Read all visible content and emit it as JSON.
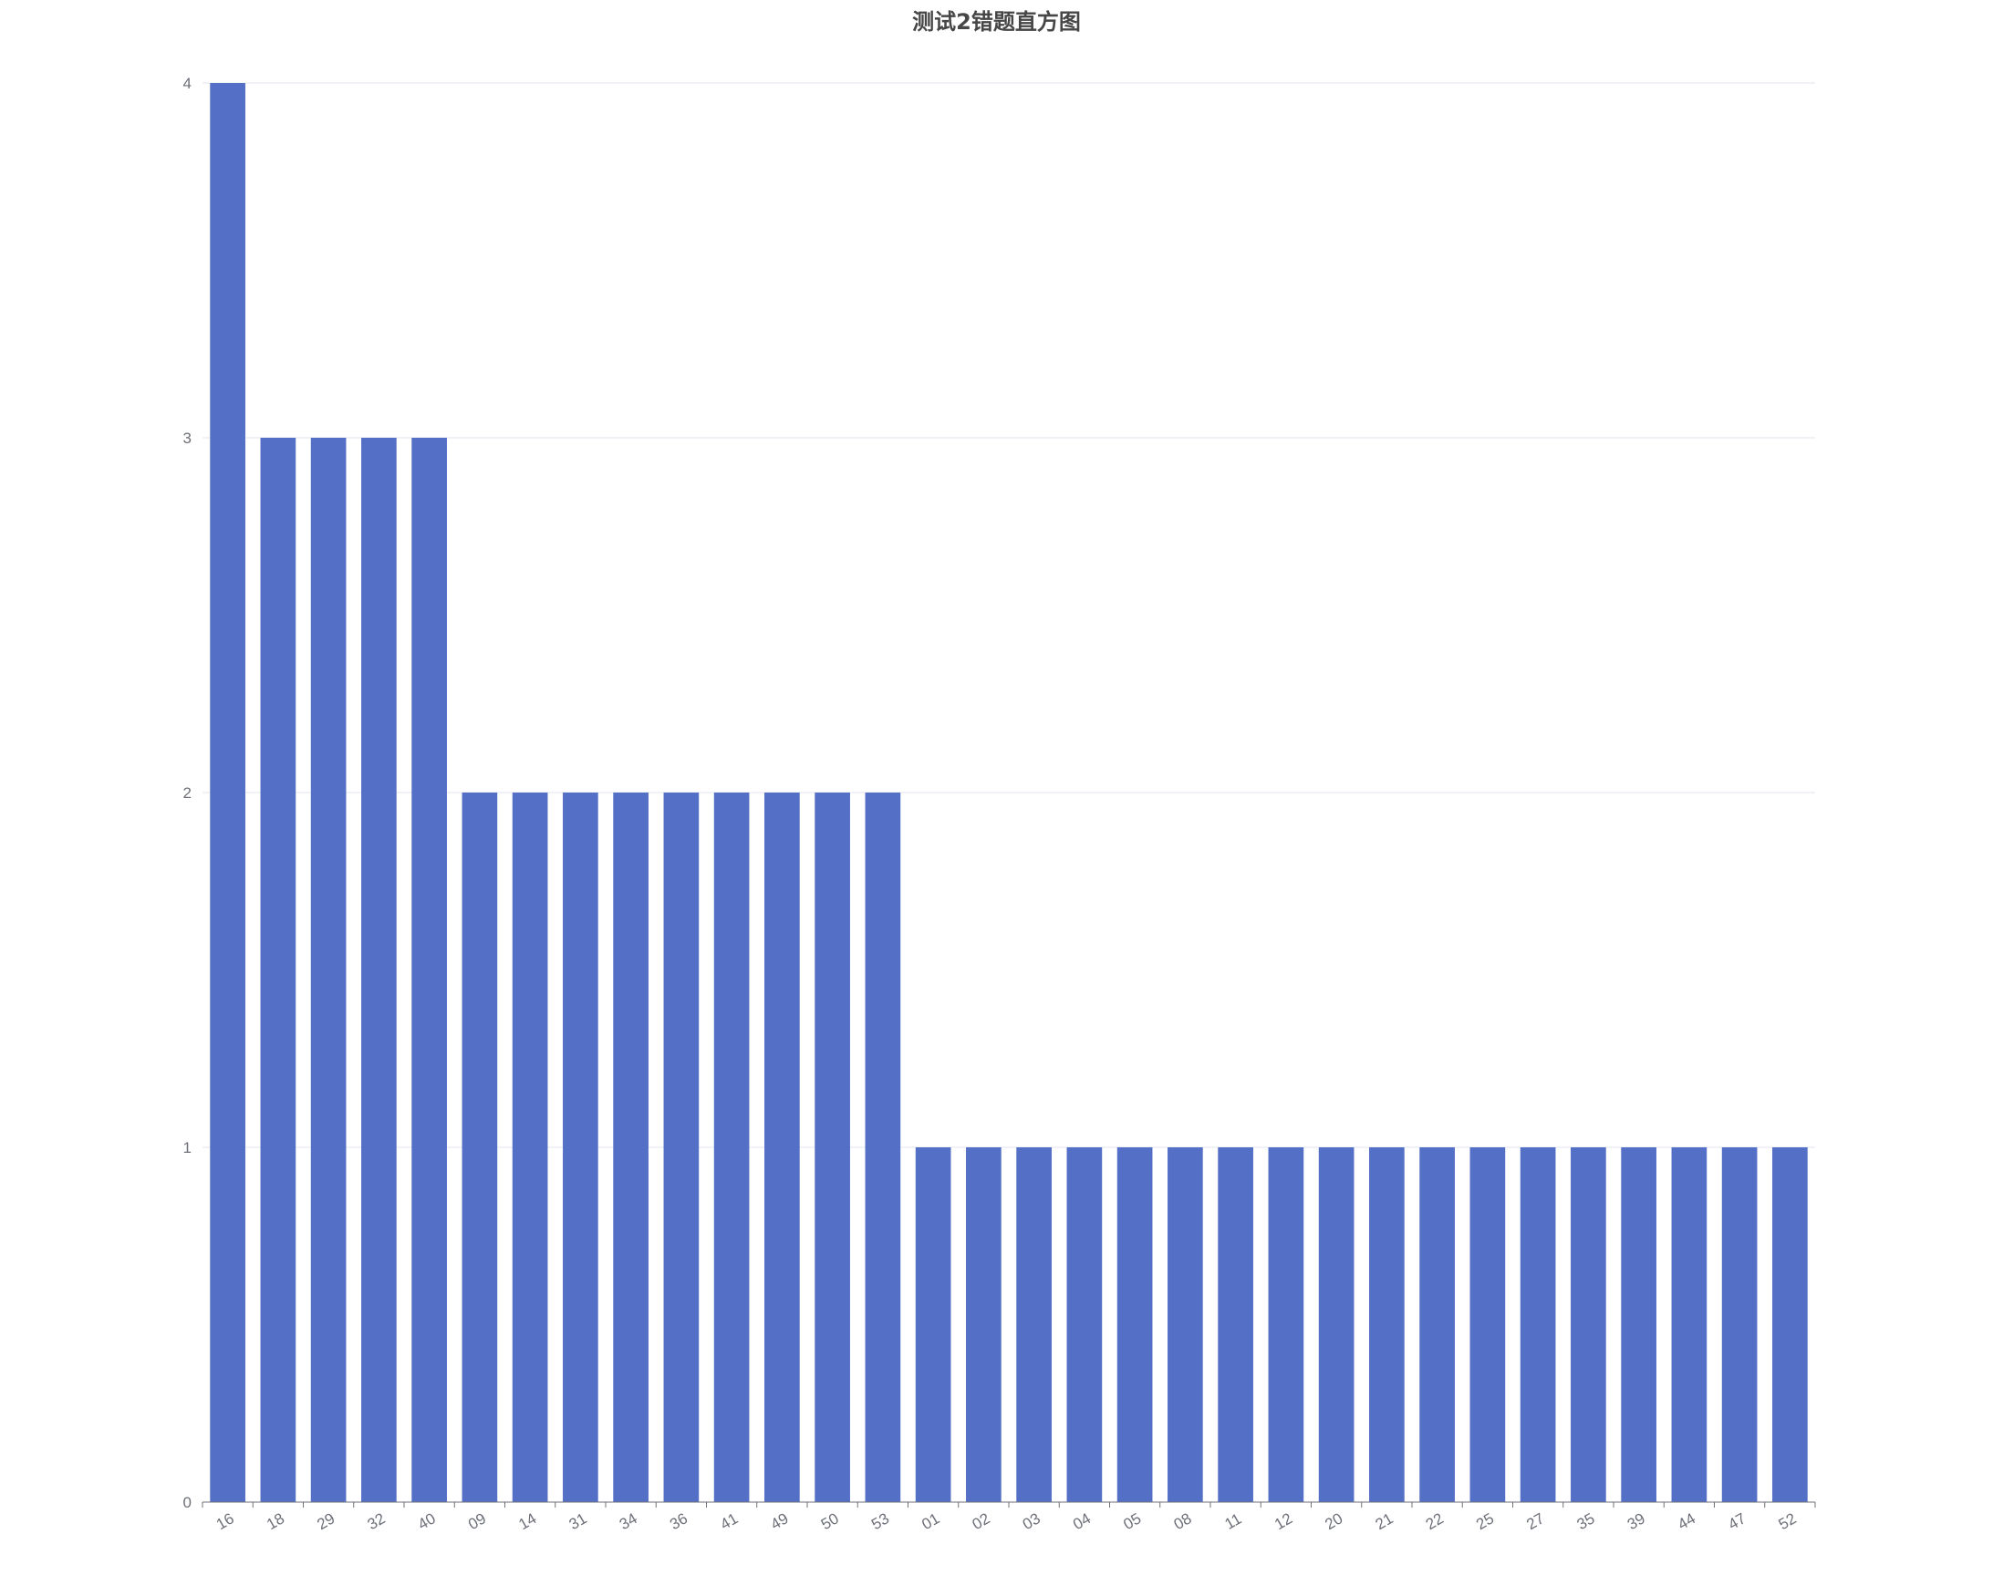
{
  "chart_data": {
    "type": "bar",
    "title": "测试2错题直方图",
    "xlabel": "",
    "ylabel": "",
    "categories": [
      "16",
      "18",
      "29",
      "32",
      "40",
      "09",
      "14",
      "31",
      "34",
      "36",
      "41",
      "49",
      "50",
      "53",
      "01",
      "02",
      "03",
      "04",
      "05",
      "08",
      "11",
      "12",
      "20",
      "21",
      "22",
      "25",
      "27",
      "35",
      "39",
      "44",
      "47",
      "52"
    ],
    "values": [
      4,
      3,
      3,
      3,
      3,
      2,
      2,
      2,
      2,
      2,
      2,
      2,
      2,
      2,
      1,
      1,
      1,
      1,
      1,
      1,
      1,
      1,
      1,
      1,
      1,
      1,
      1,
      1,
      1,
      1,
      1,
      1
    ],
    "ylim": [
      0,
      4
    ],
    "yticks": [
      "0",
      "1",
      "2",
      "3",
      "4"
    ],
    "grid": true,
    "legend": "none",
    "colors": {
      "bar": "#5470c6",
      "grid": "#e0e6f1",
      "axis": "#6e7079"
    }
  }
}
